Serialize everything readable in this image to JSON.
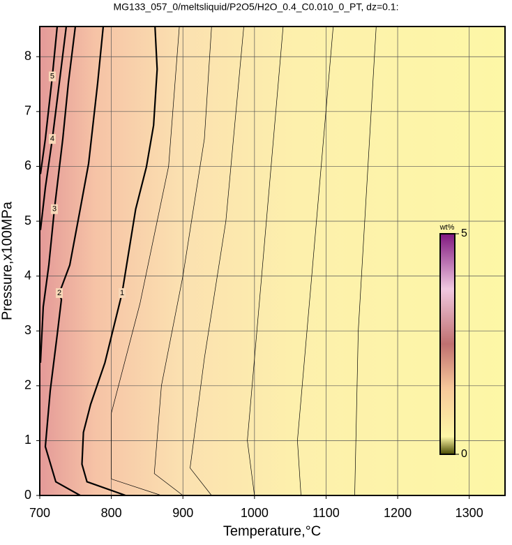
{
  "chart_data": {
    "type": "contour",
    "title": "MG133_057_0/meltsliquid/P2O5/H2O_0.4_C0.010_0_PT, dz=0.1:",
    "x_label": "Temperature,°C",
    "y_label": "Pressure,x100MPa",
    "xlim": [
      700,
      1350
    ],
    "ylim": [
      0,
      8.55
    ],
    "xticks": [
      700,
      800,
      900,
      1000,
      1100,
      1200,
      1300
    ],
    "yticks": [
      0,
      1,
      2,
      3,
      4,
      5,
      6,
      7,
      8
    ],
    "grid": true,
    "colorbar": {
      "title": "wt%",
      "lim": [
        0,
        5
      ],
      "ticks": [
        0,
        5
      ]
    },
    "contours": [
      {
        "level": 1,
        "x": [
          820,
          766,
          759,
          761,
          771,
          791,
          815,
          834,
          849,
          859,
          864,
          861
        ],
        "y": [
          0,
          0.25,
          0.57,
          1.15,
          1.66,
          2.42,
          3.69,
          5.22,
          5.99,
          6.75,
          7.77,
          8.55
        ]
      },
      {
        "level": 2,
        "x": [
          756.5,
          722.4,
          707.8,
          714.6,
          724.4,
          730.2,
          727.3,
          741.9,
          756.5,
          768.2,
          780.9,
          788.7
        ],
        "y": [
          0,
          0.25,
          0.89,
          1.91,
          2.93,
          3.57,
          3.69,
          4.2,
          5.22,
          6.05,
          7.52,
          8.55
        ]
      },
      {
        "level": 3,
        "x": [
          701,
          704.9,
          712.7,
          720.5,
          732.2,
          740,
          749.7
        ],
        "y": [
          2.42,
          3.44,
          4.2,
          5.22,
          6.5,
          7.52,
          8.55
        ]
      },
      {
        "level": 4,
        "x": [
          701,
          707.8,
          717.5,
          727.3,
          737
        ],
        "y": [
          4.84,
          5.61,
          6.5,
          7.52,
          8.55
        ]
      },
      {
        "level": 5,
        "x": [
          701,
          707.8,
          717.5,
          724.4
        ],
        "y": [
          5.86,
          6.5,
          7.64,
          8.55
        ]
      }
    ],
    "minor_contours": [
      {
        "level": 0.7,
        "x": [
          870,
          800,
          800,
          840,
          880,
          895
        ],
        "y": [
          0,
          0.3,
          1.5,
          3.5,
          6,
          8.55
        ]
      },
      {
        "level": 0.5,
        "x": [
          900,
          860,
          870,
          900,
          930,
          940
        ],
        "y": [
          0,
          0.4,
          2,
          4,
          6.5,
          8.55
        ]
      },
      {
        "level": 0.35,
        "x": [
          940,
          910,
          930,
          960,
          985
        ],
        "y": [
          0,
          0.5,
          2.5,
          5,
          8.55
        ]
      },
      {
        "level": 0.25,
        "x": [
          1000,
          990,
          1010,
          1040
        ],
        "y": [
          0,
          1,
          4,
          8.55
        ]
      },
      {
        "level": 0.18,
        "x": [
          1065,
          1060,
          1080,
          1110
        ],
        "y": [
          0,
          1,
          4,
          8.55
        ]
      },
      {
        "level": 0.12,
        "x": [
          1140,
          1145,
          1170
        ],
        "y": [
          0,
          3,
          8.55
        ]
      }
    ]
  }
}
